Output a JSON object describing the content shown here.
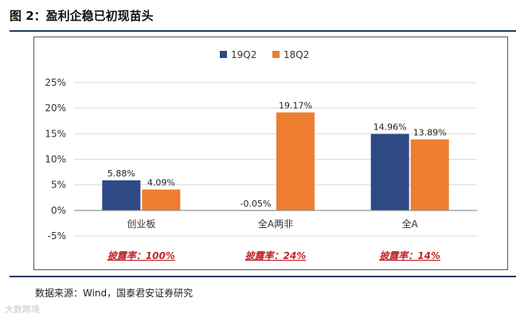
{
  "figure": {
    "title": "图 2：盈利企稳已初现苗头",
    "source": "数据来源：Wind，国泰君安证券研究",
    "watermark": "大数跨境"
  },
  "chart_data": {
    "type": "bar",
    "categories": [
      "创业板",
      "全A两非",
      "全A"
    ],
    "series": [
      {
        "name": "19Q2",
        "values": [
          5.88,
          -0.05,
          14.96
        ],
        "labels": [
          "5.88%",
          "-0.05%",
          "14.96%"
        ],
        "color": "#2e4a86"
      },
      {
        "name": "18Q2",
        "values": [
          4.09,
          19.17,
          13.89
        ],
        "labels": [
          "4.09%",
          "19.17%",
          "13.89%"
        ],
        "color": "#ed7d31"
      }
    ],
    "ylim": [
      -5,
      25
    ],
    "yticks": [
      -5,
      0,
      5,
      10,
      15,
      20,
      25
    ],
    "ytick_labels": [
      "-5%",
      "0%",
      "5%",
      "10%",
      "15%",
      "20%",
      "25%"
    ],
    "grid": true,
    "legend": "top-center",
    "annotations": [
      "披露率：100%",
      "披露率：24%",
      "披露率：14%"
    ],
    "annotation_color": "#c0262d"
  }
}
